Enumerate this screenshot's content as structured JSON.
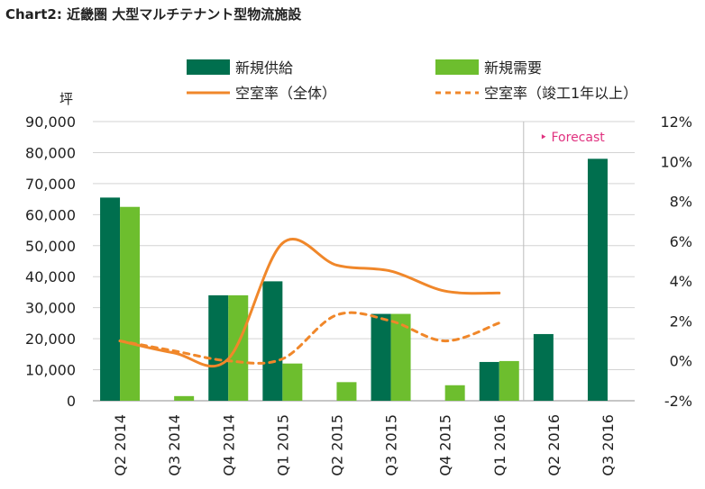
{
  "title": "Chart2:  近畿圏  大型マルチテナント型物流施設",
  "chart_data": {
    "type": "bar",
    "categories": [
      "Q2 2014",
      "Q3 2014",
      "Q4 2014",
      "Q1 2015",
      "Q2 2015",
      "Q3 2015",
      "Q4 2015",
      "Q1 2016",
      "Q2 2016",
      "Q3 2016"
    ],
    "y_left_label": "坪",
    "y_left_ticks": [
      "90,000",
      "80,000",
      "70,000",
      "60,000",
      "50,000",
      "40,000",
      "30,000",
      "20,000",
      "10,000",
      "0"
    ],
    "y_right_ticks": [
      "12%",
      "10%",
      "8%",
      "6%",
      "4%",
      "2%",
      "0%",
      "-2%"
    ],
    "ylim_left": [
      0,
      90000
    ],
    "ylim_right": [
      -2,
      12
    ],
    "forecast_label": "Forecast",
    "forecast_start": "Q2 2016",
    "series": [
      {
        "name": "新規供給",
        "kind": "bar",
        "color": "#006f4e",
        "values": [
          65500,
          0,
          34000,
          38500,
          0,
          28000,
          0,
          12500,
          21500,
          78000
        ]
      },
      {
        "name": "新規需要",
        "kind": "bar",
        "color": "#6dbe2e",
        "values": [
          62500,
          1500,
          34000,
          12000,
          6000,
          28000,
          5000,
          12800,
          null,
          null
        ]
      },
      {
        "name": "空室率（全体）",
        "kind": "line",
        "style": "solid",
        "color": "#f0872a",
        "values": [
          1.0,
          0.4,
          0.1,
          5.9,
          4.8,
          4.5,
          3.5,
          3.4,
          null,
          null
        ]
      },
      {
        "name": "空室率（竣工1年以上）",
        "kind": "line",
        "style": "dashed",
        "color": "#f0872a",
        "values": [
          1.0,
          0.5,
          0.0,
          0.1,
          2.3,
          2.0,
          1.0,
          1.9,
          null,
          null
        ]
      }
    ]
  }
}
